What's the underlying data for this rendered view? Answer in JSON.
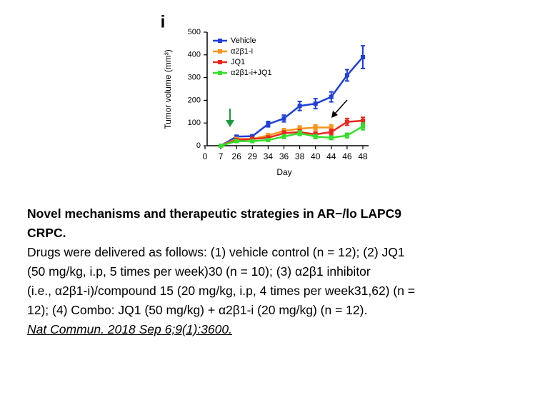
{
  "panel_label": "i",
  "chart_data": {
    "type": "line",
    "x_label": "Day",
    "y_label": "Tumor volume (mm³)",
    "categories": [
      "0",
      "7",
      "26",
      "29",
      "34",
      "36",
      "38",
      "40",
      "44",
      "46",
      "48"
    ],
    "ylim": [
      0,
      500
    ],
    "yticks": [
      0,
      100,
      200,
      300,
      400,
      500
    ],
    "series": [
      {
        "name": "Vehicle",
        "color": "#1f3fd8",
        "values": [
          null,
          0,
          40,
          42,
          95,
          120,
          175,
          185,
          215,
          310,
          390
        ],
        "errors": [
          null,
          5,
          5,
          6,
          12,
          15,
          20,
          22,
          22,
          25,
          50
        ]
      },
      {
        "name": "α2β1-i",
        "color": "#f7941d",
        "values": [
          null,
          0,
          30,
          30,
          45,
          65,
          75,
          80,
          80,
          null,
          null
        ],
        "errors": [
          null,
          5,
          5,
          6,
          8,
          10,
          12,
          12,
          12,
          null,
          null
        ]
      },
      {
        "name": "JQ1",
        "color": "#e8281e",
        "values": [
          null,
          0,
          25,
          30,
          35,
          55,
          60,
          50,
          60,
          105,
          110
        ],
        "errors": [
          null,
          5,
          5,
          6,
          8,
          10,
          10,
          10,
          12,
          15,
          15
        ]
      },
      {
        "name": "α2β1-i+JQ1",
        "color": "#33e02c",
        "values": [
          null,
          0,
          20,
          20,
          25,
          40,
          55,
          40,
          35,
          45,
          85
        ],
        "errors": [
          null,
          4,
          5,
          5,
          6,
          8,
          10,
          8,
          8,
          10,
          15
        ]
      }
    ]
  },
  "caption": {
    "title_lines": [
      "Novel mechanisms and therapeutic strategies in AR−/lo LAPC9",
      "CRPC."
    ],
    "body_lines": [
      "Drugs were delivered as follows: (1) vehicle control (n = 12); (2) JQ1",
      "(50 mg/kg, i.p, 5 times per week)30 (n = 10); (3) α2β1 inhibitor",
      "(i.e., α2β1-i)/compound 15 (20 mg/kg, i.p, 4 times per week31,62) (n =",
      "12); (4) Combo: JQ1 (50 mg/kg) + α2β1-i (20 mg/kg) (n = 12)."
    ],
    "citation": "Nat Commun. 2018 Sep 6;9(1):3600."
  }
}
